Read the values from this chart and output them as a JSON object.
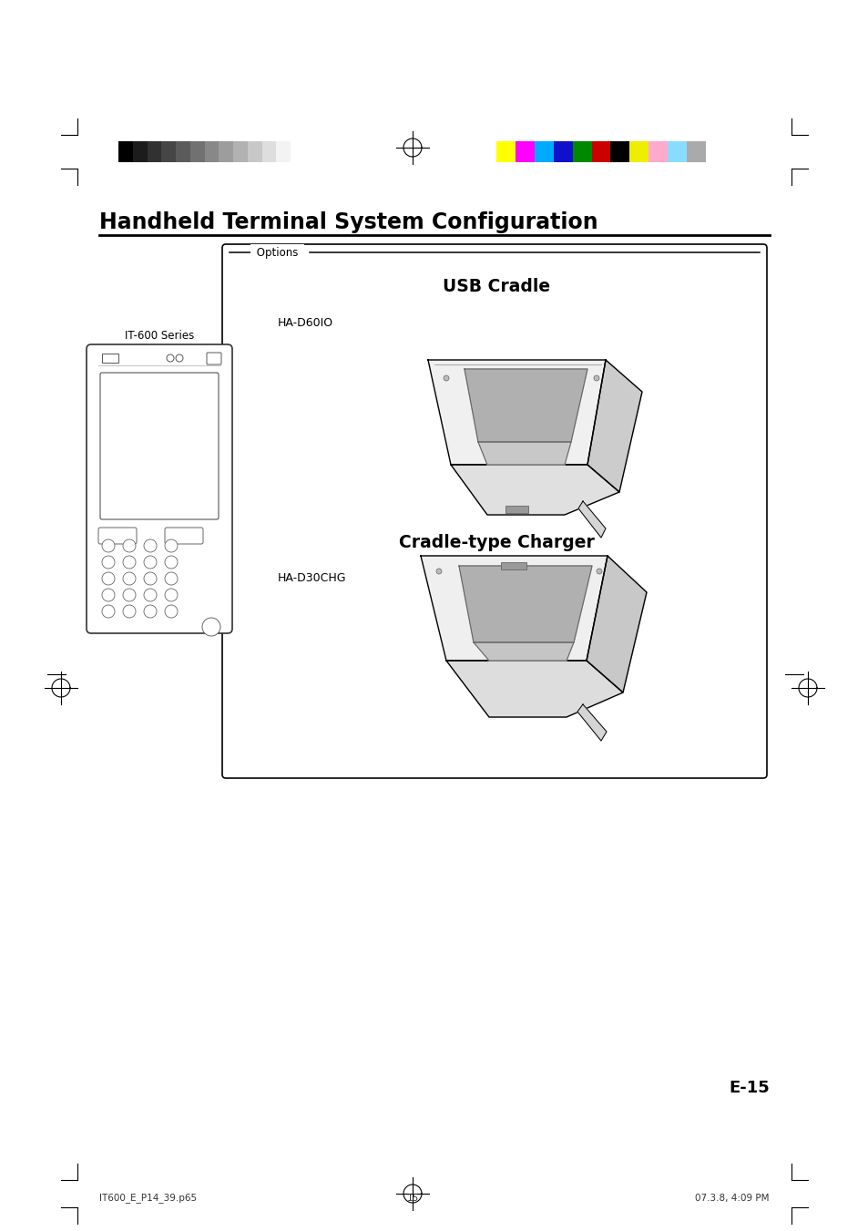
{
  "page_bg": "#ffffff",
  "title": "Handheld Terminal System Configuration",
  "title_fontsize": 17,
  "options_label": "Options",
  "usb_cradle_label": "USB Cradle",
  "ha_d60io_label": "HA-D60IO",
  "cradle_charger_label": "Cradle-type Charger",
  "ha_d30chg_label": "HA-D30CHG",
  "it600_label": "IT-600 Series",
  "page_number": "E-15",
  "footer_left": "IT600_E_P14_39.p65",
  "footer_center": "15",
  "footer_right": "07.3.8, 4:09 PM",
  "grayscale_colors": [
    "#000000",
    "#1c1c1c",
    "#313131",
    "#464646",
    "#5b5b5b",
    "#717171",
    "#888888",
    "#9d9d9d",
    "#b2b2b2",
    "#c8c8c8",
    "#dedede",
    "#f3f3f3",
    "#ffffff"
  ],
  "color_colors": [
    "#ffff00",
    "#ff00ff",
    "#00aaff",
    "#1010cc",
    "#008800",
    "#cc0000",
    "#000000",
    "#eeee00",
    "#ffaacc",
    "#88ddff",
    "#aaaaaa"
  ]
}
